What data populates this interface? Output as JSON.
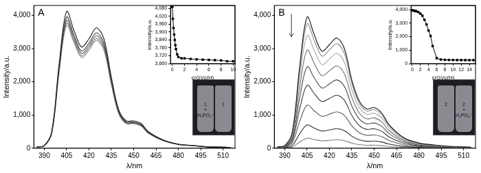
{
  "chart_data": [
    {
      "type": "line",
      "x_label": "λ/nm",
      "y_label": "Intensity/a.u.",
      "annotations": [
        "A",
        "1\n+\nH₂PO₄⁻",
        "1"
      ],
      "x": [
        385,
        390,
        395,
        400,
        405,
        410,
        415,
        420,
        425,
        430,
        435,
        440,
        445,
        450,
        455,
        460,
        470,
        480,
        490,
        500,
        510,
        515
      ],
      "series": [
        {
          "color": "#1a1a1a",
          "values": [
            41,
            82,
            494,
            2554,
            4120,
            3543,
            3049,
            3296,
            3626,
            3296,
            2142,
            1154,
            824,
            824,
            742,
            494,
            247,
            124,
            82,
            41,
            33,
            25
          ]
        },
        {
          "color": "#3a3a3a",
          "values": [
            40,
            79,
            474,
            2449,
            3950,
            3397,
            2923,
            3160,
            3476,
            3160,
            2054,
            1106,
            790,
            790,
            711,
            474,
            237,
            119,
            79,
            40,
            32,
            24
          ]
        },
        {
          "color": "#5a5a5a",
          "values": [
            39,
            77,
            462,
            2387,
            3850,
            3311,
            2849,
            3080,
            3388,
            3080,
            2002,
            1078,
            770,
            770,
            693,
            462,
            231,
            116,
            77,
            39,
            31,
            23
          ]
        },
        {
          "color": "#7a7a7a",
          "values": [
            38,
            75,
            451,
            2331,
            3760,
            3234,
            2782,
            3008,
            3309,
            3008,
            1955,
            1053,
            752,
            752,
            677,
            451,
            226,
            113,
            75,
            38,
            30,
            23
          ]
        },
        {
          "color": "#9a9a9a",
          "values": [
            37,
            74,
            443,
            2288,
            3690,
            3173,
            2731,
            2952,
            3247,
            2952,
            1919,
            1033,
            738,
            738,
            664,
            443,
            221,
            111,
            74,
            37,
            30,
            22
          ]
        }
      ],
      "xlim": [
        383,
        518
      ],
      "xticks": [
        390,
        405,
        420,
        435,
        450,
        465,
        480,
        495,
        510
      ],
      "ylim": [
        0,
        4300
      ],
      "yticks": [
        0,
        1000,
        2000,
        3000,
        4000
      ],
      "grid": false
    },
    {
      "type": "line",
      "x_label": "c(G)/c(H)",
      "y_label": "Intensity/a.u.",
      "color": "#000000",
      "marker": "square",
      "x": [
        0,
        0.1,
        0.2,
        0.3,
        0.4,
        0.5,
        0.6,
        0.8,
        1,
        1.5,
        2,
        3,
        4,
        5,
        6,
        7,
        8,
        9,
        10
      ],
      "values": [
        4090,
        4000,
        3930,
        3880,
        3840,
        3800,
        3770,
        3730,
        3710,
        3700,
        3700,
        3695,
        3692,
        3690,
        3688,
        3686,
        3684,
        3678,
        3678
      ],
      "xlim": [
        -0.3,
        10.3
      ],
      "xticks": [
        0,
        2,
        4,
        6,
        8,
        10
      ],
      "ylim": [
        3660,
        4100
      ],
      "yticks": [
        3660,
        3720,
        3780,
        3840,
        3900,
        3960,
        4020,
        4080
      ],
      "grid": false
    },
    {
      "type": "line",
      "x_label": "λ/nm",
      "y_label": "Intensity/a.u.",
      "annotations": [
        "B",
        "2",
        "2\n+\nH₂PO₄⁻"
      ],
      "x": [
        385,
        390,
        395,
        400,
        405,
        410,
        415,
        420,
        425,
        430,
        435,
        440,
        445,
        450,
        455,
        460,
        470,
        480,
        490,
        500,
        510,
        515
      ],
      "series": [
        {
          "color": "#111111",
          "values": [
            40,
            79,
            474,
            2449,
            3950,
            3397,
            2923,
            3121,
            3318,
            3002,
            2054,
            1422,
            1185,
            1225,
            1067,
            711,
            316,
            158,
            99,
            59,
            40,
            32
          ]
        },
        {
          "color": "#8c8c8c",
          "values": [
            38,
            75,
            450,
            2325,
            3750,
            3225,
            2775,
            2963,
            3150,
            2850,
            1950,
            1350,
            1125,
            1163,
            1013,
            675,
            300,
            150,
            94,
            56,
            38,
            30
          ]
        },
        {
          "color": "#a8a8a8",
          "values": [
            34,
            68,
            408,
            2108,
            3400,
            2924,
            2516,
            2686,
            2856,
            2584,
            1768,
            1224,
            1020,
            1054,
            918,
            612,
            272,
            136,
            85,
            51,
            34,
            27
          ]
        },
        {
          "color": "#6e6e6e",
          "values": [
            30,
            59,
            354,
            1829,
            2950,
            2537,
            2183,
            2331,
            2478,
            2242,
            1534,
            1062,
            885,
            915,
            797,
            531,
            236,
            118,
            74,
            44,
            30,
            24
          ]
        },
        {
          "color": "#4a4a4a",
          "values": [
            25,
            49,
            294,
            1519,
            2450,
            2107,
            1813,
            1936,
            2058,
            1862,
            1274,
            882,
            735,
            760,
            662,
            441,
            196,
            98,
            61,
            37,
            25,
            20
          ]
        },
        {
          "color": "#363636",
          "values": [
            19,
            38,
            228,
            1178,
            1900,
            1634,
            1406,
            1501,
            1596,
            1444,
            988,
            684,
            570,
            589,
            513,
            342,
            152,
            76,
            48,
            29,
            19,
            15
          ]
        },
        {
          "color": "#5c5c5c",
          "values": [
            13,
            26,
            156,
            806,
            1300,
            1118,
            962,
            1027,
            1092,
            988,
            676,
            468,
            390,
            403,
            351,
            234,
            104,
            52,
            33,
            20,
            13,
            10
          ]
        },
        {
          "color": "#2a2a2a",
          "values": [
            7,
            14,
            84,
            434,
            700,
            602,
            518,
            553,
            588,
            532,
            364,
            252,
            210,
            217,
            189,
            126,
            56,
            28,
            18,
            11,
            7,
            6
          ]
        },
        {
          "color": "#7c7c7c",
          "values": [
            3,
            6,
            36,
            186,
            300,
            258,
            222,
            237,
            252,
            228,
            156,
            108,
            90,
            93,
            81,
            54,
            24,
            12,
            8,
            5,
            3,
            2
          ]
        }
      ],
      "xlim": [
        383,
        518
      ],
      "xticks": [
        390,
        405,
        420,
        435,
        450,
        465,
        480,
        495,
        510
      ],
      "ylim": [
        0,
        4300
      ],
      "yticks": [
        0,
        1000,
        2000,
        3000,
        4000
      ],
      "grid": false
    },
    {
      "type": "line",
      "x_label": "c(G)/c(H)",
      "y_label": "Intensity/a.u.",
      "color": "#000000",
      "marker": "square",
      "x": [
        0,
        0.2,
        0.4,
        0.6,
        0.8,
        1,
        1.5,
        2,
        2.5,
        3,
        3.5,
        4,
        4.5,
        5,
        6,
        7,
        8,
        9,
        10,
        11,
        12,
        13,
        14,
        15
      ],
      "values": [
        3950,
        3940,
        3930,
        3910,
        3900,
        3880,
        3820,
        3700,
        3550,
        3250,
        2900,
        2450,
        2050,
        1300,
        400,
        300,
        280,
        270,
        265,
        262,
        260,
        258,
        255,
        255
      ],
      "xlim": [
        -0.3,
        15.5
      ],
      "xticks": [
        0,
        2,
        4,
        6,
        8,
        10,
        12,
        14
      ],
      "ylim": [
        0,
        4300
      ],
      "yticks": [
        0,
        1000,
        2000,
        3000,
        4000
      ],
      "grid": false
    }
  ]
}
